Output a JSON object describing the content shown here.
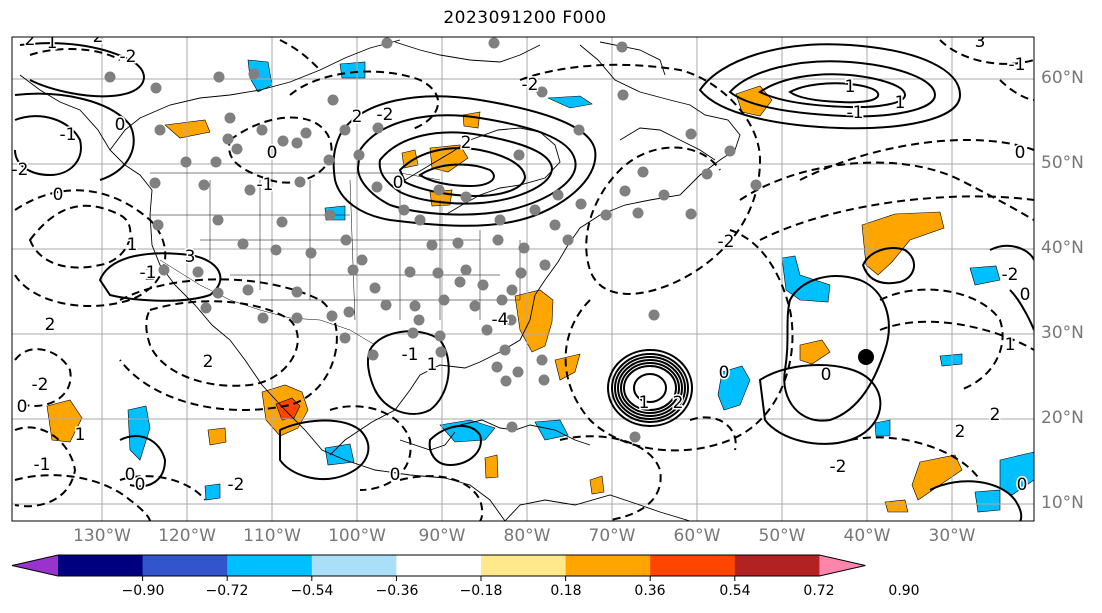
{
  "title": "2023091200 F000",
  "lat_labels": [
    "60°N",
    "50°N",
    "40°N",
    "30°N",
    "20°N",
    "10°N"
  ],
  "lon_labels": [
    "130°W",
    "120°W",
    "110°W",
    "100°W",
    "90°W",
    "80°W",
    "70°W",
    "60°W",
    "50°W",
    "40°W",
    "30°W"
  ],
  "colorbar": {
    "tick_labels": [
      "−0.90",
      "−0.72",
      "−0.54",
      "−0.36",
      "−0.18",
      "0.18",
      "0.36",
      "0.54",
      "0.72",
      "0.90"
    ],
    "colors": [
      "#9933cc",
      "#00007f",
      "#3355cc",
      "#00bfff",
      "#aadff8",
      "#ffffff",
      "#ffe98a",
      "#ffa500",
      "#ff4500",
      "#b22222",
      "#ff85ad"
    ]
  },
  "contour_labels": [
    "2",
    "-2",
    "1",
    "-1",
    "0",
    "2",
    "-2",
    "0",
    "1",
    "2",
    "3",
    "-1",
    "0",
    "2",
    "-2",
    "0",
    "-1",
    "1",
    "0",
    "-2",
    "0",
    "-1",
    "2",
    "-2",
    "0",
    "1",
    "-1",
    "0",
    "-4",
    "2",
    "-2",
    "1",
    "2",
    "-2",
    "0",
    "1",
    "1",
    "-1",
    "0",
    "-2",
    "2",
    "2",
    "1",
    "0",
    "3",
    "-1",
    "0",
    "2",
    "-2",
    "0"
  ]
}
